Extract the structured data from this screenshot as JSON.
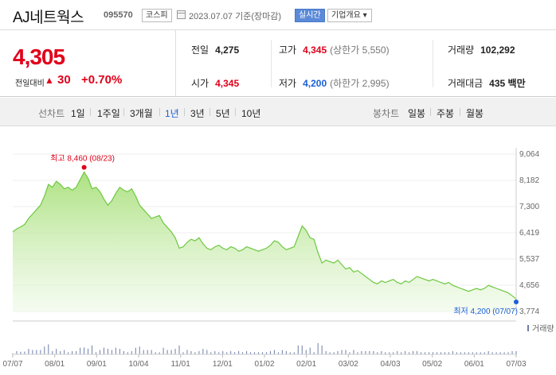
{
  "header": {
    "name": "AJ네트웍스",
    "code": "095570",
    "market": "코스피",
    "date": "2023.07.07  기준(장마감)",
    "realtime": "실시간",
    "company_btn": "기업개요 ▾"
  },
  "summary": {
    "price": "4,305",
    "change_label": "전일대비",
    "change_arrow": "▲",
    "change": "30",
    "change_pct": "+0.70%",
    "prev_close_label": "전일",
    "prev_close": "4,275",
    "high_label": "고가",
    "high": "4,345",
    "upper_limit": "(상한가 5,550)",
    "volume_label": "거래량",
    "volume": "102,292",
    "open_label": "시가",
    "open": "4,345",
    "low_label": "저가",
    "low": "4,200",
    "lower_limit": "(하한가 2,995)",
    "amount_label": "거래대금",
    "amount": "435 백만"
  },
  "tabs": {
    "line_label": "선차트",
    "periods": [
      "1일",
      "1주일",
      "3개월",
      "1년",
      "3년",
      "5년",
      "10년"
    ],
    "active_period": "1년",
    "candle_label": "봉차트",
    "candles": [
      "일봉",
      "주봉",
      "월봉"
    ]
  },
  "chart_data": {
    "type": "area",
    "y_ticks": [
      "9,064",
      "8,182",
      "7,300",
      "6,419",
      "5,537",
      "4,656",
      "3,774"
    ],
    "ylim": [
      3774,
      9064
    ],
    "x_ticks": [
      "07/07",
      "08/01",
      "09/01",
      "10/04",
      "11/01",
      "12/01",
      "01/02",
      "02/01",
      "03/02",
      "04/03",
      "05/02",
      "06/01",
      "07/03"
    ],
    "high_annotation": "최고 8,460 (08/23)",
    "low_annotation": "최저 4,200 (07/07)",
    "volume_legend": "거래량",
    "price_series": [
      6450,
      6550,
      6620,
      6700,
      6900,
      7050,
      7200,
      7350,
      7650,
      8050,
      7950,
      8150,
      8050,
      7900,
      7950,
      7850,
      7950,
      8200,
      8460,
      8250,
      7900,
      7950,
      7800,
      7550,
      7350,
      7500,
      7750,
      7950,
      7850,
      7800,
      7900,
      7650,
      7350,
      7200,
      7050,
      6900,
      6950,
      7000,
      6750,
      6600,
      6450,
      6250,
      5900,
      5950,
      6100,
      6200,
      6150,
      6250,
      6050,
      5900,
      5850,
      5950,
      6000,
      5900,
      5850,
      5950,
      5900,
      5800,
      5850,
      5950,
      5900,
      5850,
      5800,
      5850,
      5900,
      6000,
      6150,
      6100,
      5950,
      5850,
      5900,
      5950,
      6300,
      6650,
      6500,
      6250,
      6200,
      5750,
      5400,
      5500,
      5450,
      5400,
      5500,
      5350,
      5200,
      5250,
      5100,
      5150,
      5050,
      4950,
      4850,
      4750,
      4700,
      4800,
      4750,
      4800,
      4850,
      4750,
      4700,
      4800,
      4750,
      4850,
      4950,
      4900,
      4850,
      4800,
      4850,
      4800,
      4750,
      4700,
      4750,
      4650,
      4600,
      4550,
      4500,
      4450,
      4500,
      4550,
      4500,
      4550,
      4650,
      4600,
      4550,
      4500,
      4450,
      4400,
      4300,
      4200
    ]
  }
}
